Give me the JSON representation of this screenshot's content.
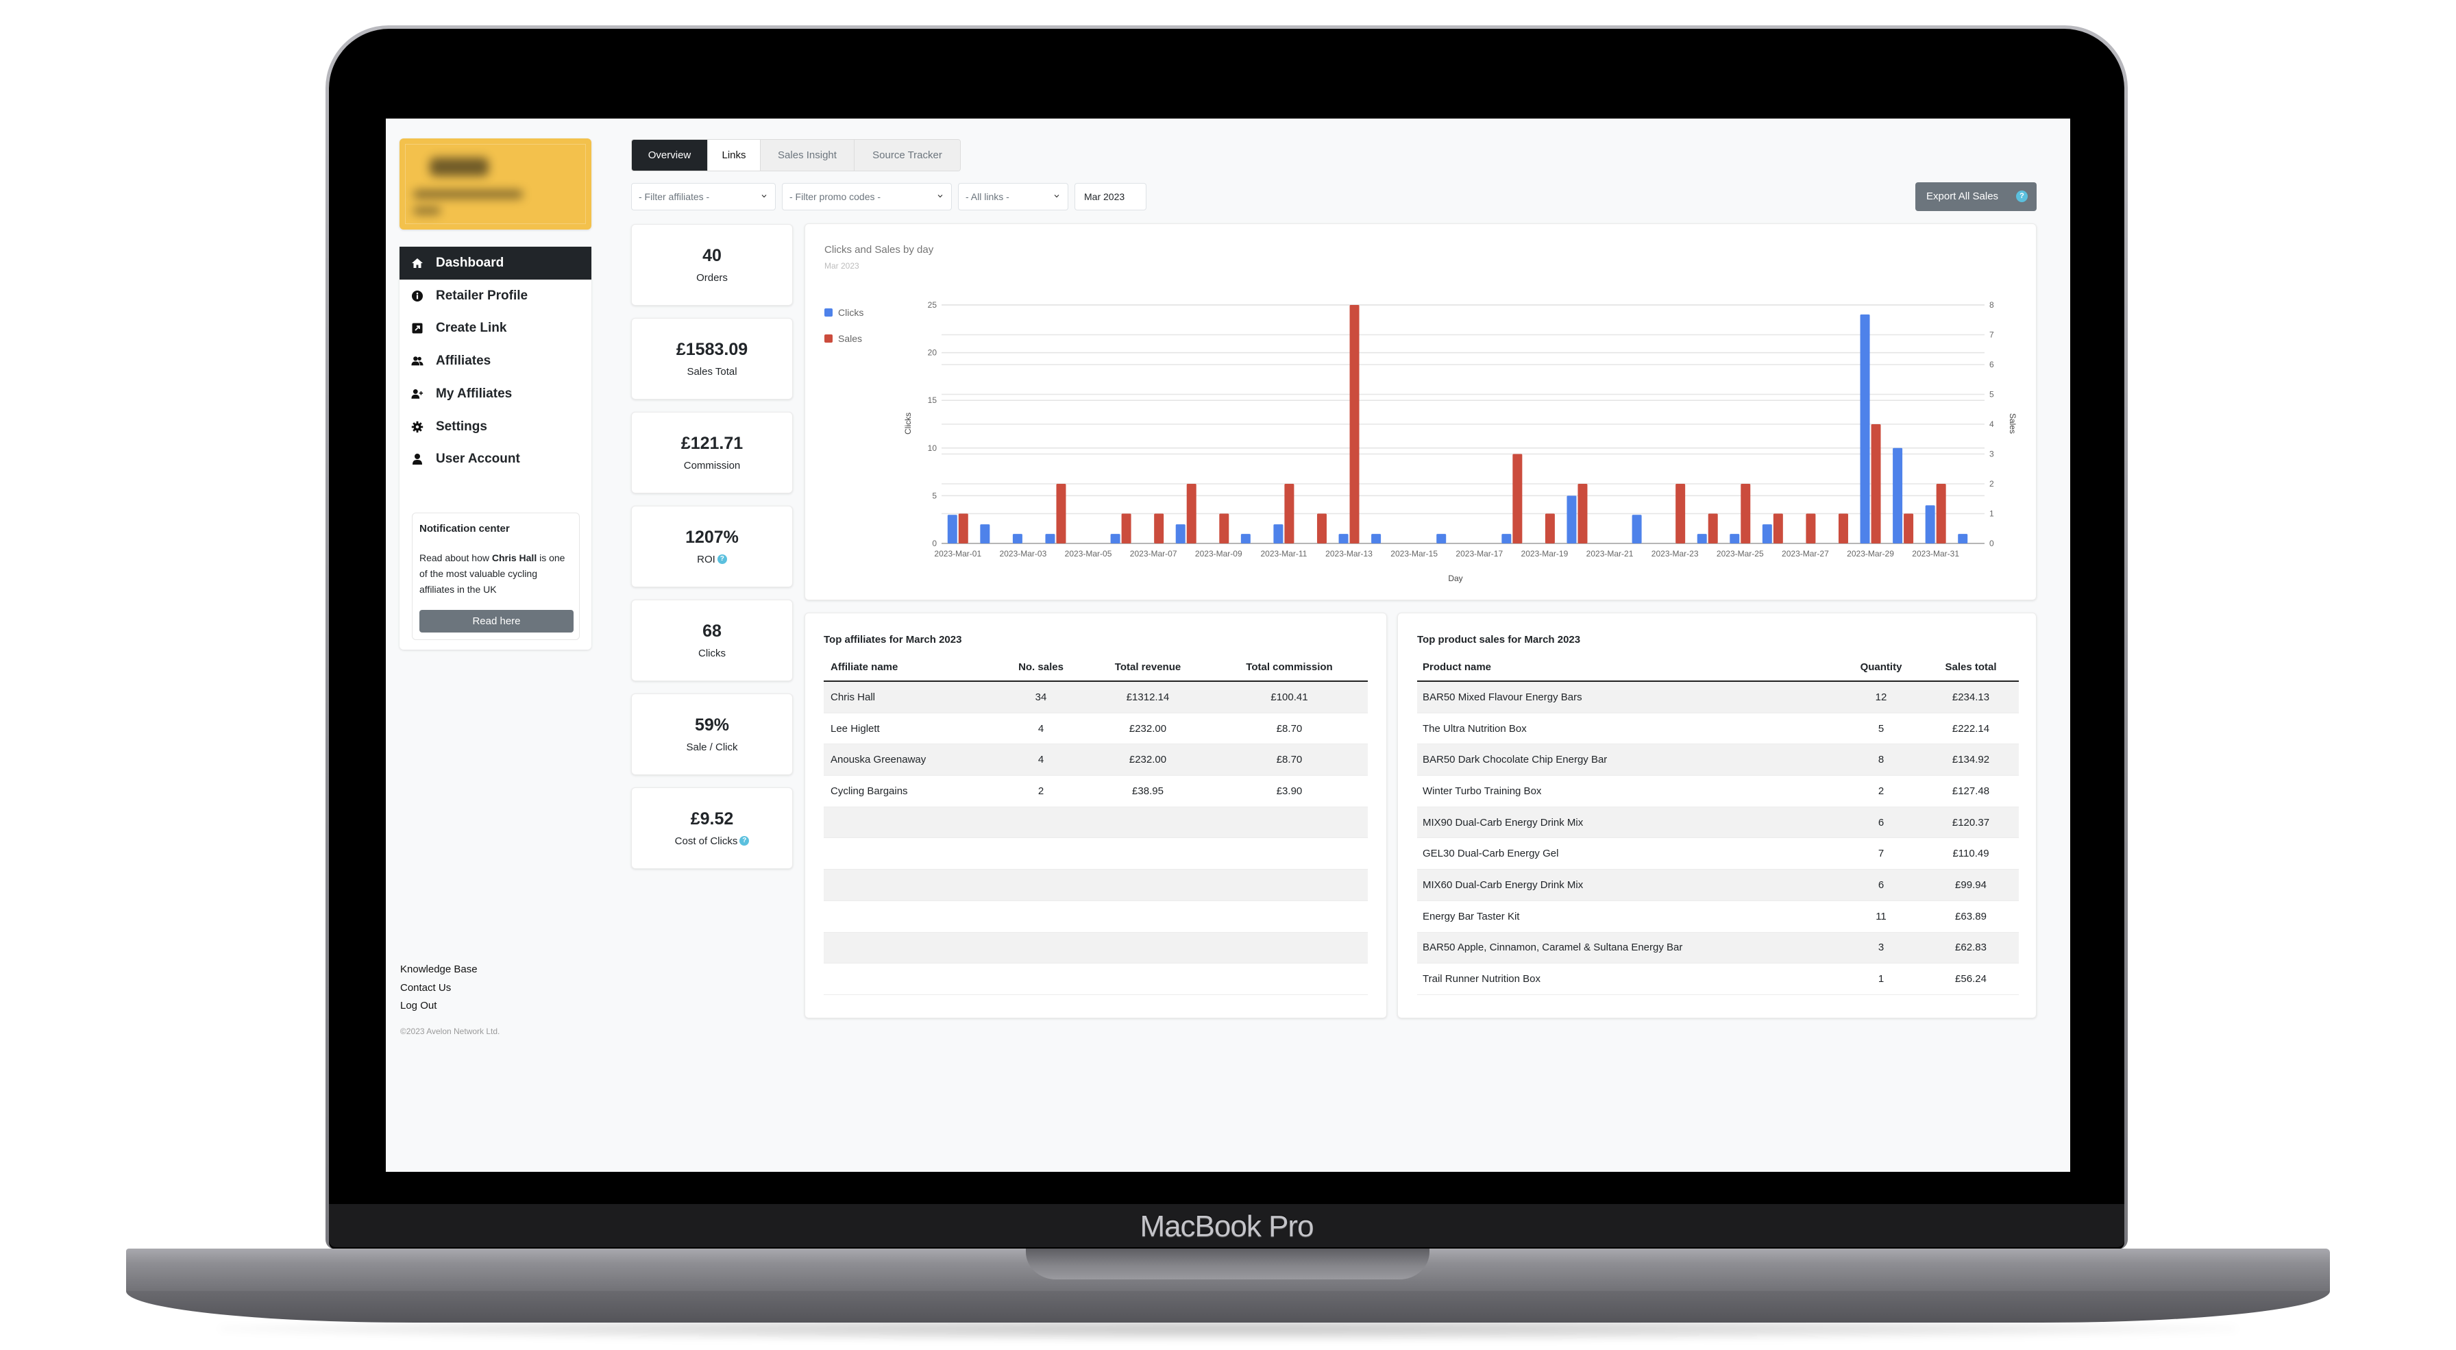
{
  "device": {
    "label": "MacBook Pro"
  },
  "colors": {
    "brand_yellow": "#f3c14c",
    "nav_active": "#212529",
    "button_grey": "#6c757d",
    "help_blue": "#5bc0de",
    "clicks_blue": "#4e82ea",
    "sales_red": "#cb4c3d",
    "row_shade": "#f2f2f2"
  },
  "sidebar": {
    "nav": [
      {
        "label": "Dashboard",
        "icon": "home-icon",
        "active": true
      },
      {
        "label": "Retailer Profile",
        "icon": "info-circle-icon",
        "active": false
      },
      {
        "label": "Create Link",
        "icon": "external-link-icon",
        "active": false
      },
      {
        "label": "Affiliates",
        "icon": "users-icon",
        "active": false
      },
      {
        "label": "My Affiliates",
        "icon": "user-plus-icon",
        "active": false
      },
      {
        "label": "Settings",
        "icon": "gear-icon",
        "active": false
      },
      {
        "label": "User Account",
        "icon": "user-icon",
        "active": false
      }
    ],
    "notification": {
      "title": "Notification center",
      "text_before": "Read about how ",
      "highlight": "Chris Hall",
      "text_after": " is one of the most valuable cycling affiliates in the UK",
      "button": "Read here"
    },
    "footer_links": [
      "Knowledge Base",
      "Contact Us",
      "Log Out"
    ],
    "copyright": "©2023 Avelon Network Ltd."
  },
  "tabs": [
    {
      "label": "Overview",
      "state": "active"
    },
    {
      "label": "Links",
      "state": "default"
    },
    {
      "label": "Sales Insight",
      "state": "muted"
    },
    {
      "label": "Source Tracker",
      "state": "muted"
    }
  ],
  "filters": {
    "affiliates": "- Filter affiliates -",
    "promo_codes": "- Filter promo codes -",
    "links": "- All links -",
    "month": "Mar 2023"
  },
  "export_button": {
    "label": "Export All Sales",
    "icon": "help-icon"
  },
  "stats": [
    {
      "value": "40",
      "label": "Orders",
      "help": false
    },
    {
      "value": "£1583.09",
      "label": "Sales Total",
      "help": false
    },
    {
      "value": "£121.71",
      "label": "Commission",
      "help": false
    },
    {
      "value": "1207%",
      "label": "ROI",
      "help": true
    },
    {
      "value": "68",
      "label": "Clicks",
      "help": false
    },
    {
      "value": "59%",
      "label": "Sale / Click",
      "help": false
    },
    {
      "value": "£9.52",
      "label": "Cost of Clicks",
      "help": true
    }
  ],
  "chart_data": {
    "type": "bar",
    "title": "Clicks and Sales by day",
    "subtitle": "Mar 2023",
    "xlabel": "Day",
    "ylabel": "Clicks",
    "ylabel_right": "Sales",
    "ylim": [
      0,
      25
    ],
    "ylim_right": [
      0,
      8
    ],
    "yticks": [
      0,
      5,
      10,
      15,
      20,
      25
    ],
    "yticks_right": [
      0,
      1,
      2,
      3,
      4,
      5,
      6,
      7,
      8
    ],
    "grid": true,
    "legend_position": "left",
    "categories": [
      "2023-Mar-01",
      "2023-Mar-02",
      "2023-Mar-03",
      "2023-Mar-04",
      "2023-Mar-05",
      "2023-Mar-06",
      "2023-Mar-07",
      "2023-Mar-08",
      "2023-Mar-09",
      "2023-Mar-10",
      "2023-Mar-11",
      "2023-Mar-12",
      "2023-Mar-13",
      "2023-Mar-14",
      "2023-Mar-15",
      "2023-Mar-16",
      "2023-Mar-17",
      "2023-Mar-18",
      "2023-Mar-19",
      "2023-Mar-20",
      "2023-Mar-21",
      "2023-Mar-22",
      "2023-Mar-23",
      "2023-Mar-24",
      "2023-Mar-25",
      "2023-Mar-26",
      "2023-Mar-27",
      "2023-Mar-28",
      "2023-Mar-29",
      "2023-Mar-30",
      "2023-Mar-31",
      "2023-Apr-01"
    ],
    "x_tick_labels": [
      "2023-Mar-01",
      "2023-Mar-03",
      "2023-Mar-05",
      "2023-Mar-07",
      "2023-Mar-09",
      "2023-Mar-11",
      "2023-Mar-13",
      "2023-Mar-15",
      "2023-Mar-17",
      "2023-Mar-19",
      "2023-Mar-21",
      "2023-Mar-23",
      "2023-Mar-25",
      "2023-Mar-27",
      "2023-Mar-29",
      "2023-Mar-31"
    ],
    "series": [
      {
        "name": "Clicks",
        "axis": "left",
        "color": "#4e82ea",
        "values": [
          3,
          2,
          1,
          1,
          0,
          1,
          0,
          2,
          0,
          1,
          2,
          0,
          1,
          1,
          0,
          1,
          0,
          1,
          0,
          5,
          0,
          3,
          0,
          1,
          1,
          2,
          0,
          0,
          24,
          10,
          4,
          1
        ]
      },
      {
        "name": "Sales",
        "axis": "right",
        "color": "#cb4c3d",
        "values": [
          1,
          0,
          0,
          2,
          0,
          1,
          1,
          2,
          1,
          0,
          2,
          1,
          8,
          0,
          0,
          0,
          0,
          3,
          1,
          2,
          0,
          0,
          2,
          1,
          2,
          1,
          1,
          1,
          4,
          1,
          2,
          0
        ]
      }
    ]
  },
  "affiliates_table": {
    "title": "Top affiliates for March 2023",
    "headers": [
      "Affiliate name",
      "No. sales",
      "Total revenue",
      "Total commission"
    ],
    "rows": [
      {
        "name": "Chris Hall",
        "sales": "34",
        "revenue": "£1312.14",
        "commission": "£100.41"
      },
      {
        "name": "Lee Higlett",
        "sales": "4",
        "revenue": "£232.00",
        "commission": "£8.70"
      },
      {
        "name": "Anouska Greenaway",
        "sales": "4",
        "revenue": "£232.00",
        "commission": "£8.70"
      },
      {
        "name": "Cycling Bargains",
        "sales": "2",
        "revenue": "£38.95",
        "commission": "£3.90"
      }
    ]
  },
  "products_table": {
    "title": "Top product sales for March 2023",
    "headers": [
      "Product name",
      "Quantity",
      "Sales total"
    ],
    "rows": [
      {
        "name": "BAR50 Mixed Flavour Energy Bars",
        "quantity": "12",
        "total": "£234.13"
      },
      {
        "name": "The Ultra Nutrition Box",
        "quantity": "5",
        "total": "£222.14"
      },
      {
        "name": "BAR50 Dark Chocolate Chip Energy Bar",
        "quantity": "8",
        "total": "£134.92"
      },
      {
        "name": "Winter Turbo Training Box",
        "quantity": "2",
        "total": "£127.48"
      },
      {
        "name": "MIX90 Dual-Carb Energy Drink Mix",
        "quantity": "6",
        "total": "£120.37"
      },
      {
        "name": "GEL30 Dual-Carb Energy Gel",
        "quantity": "7",
        "total": "£110.49"
      },
      {
        "name": "MIX60 Dual-Carb Energy Drink Mix",
        "quantity": "6",
        "total": "£99.94"
      },
      {
        "name": "Energy Bar Taster Kit",
        "quantity": "11",
        "total": "£63.89"
      },
      {
        "name": "BAR50 Apple, Cinnamon, Caramel & Sultana Energy Bar",
        "quantity": "3",
        "total": "£62.83"
      },
      {
        "name": "Trail Runner Nutrition Box",
        "quantity": "1",
        "total": "£56.24"
      }
    ]
  }
}
